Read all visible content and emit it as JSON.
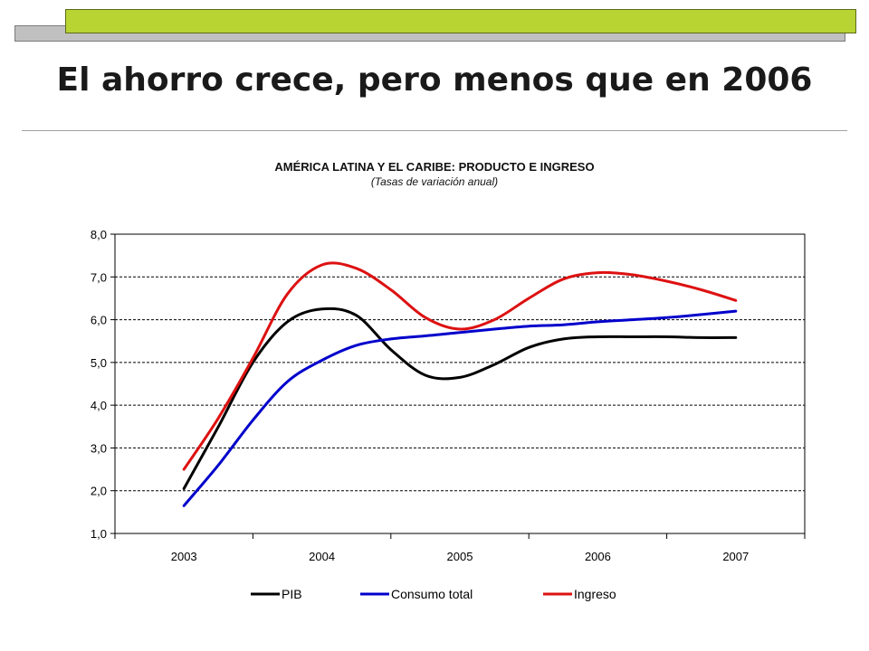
{
  "slide": {
    "title": "El ahorro crece, pero menos que en 2006"
  },
  "colors": {
    "accent_green": "#b7d433",
    "accent_gray": "#c0c0c0"
  },
  "chart_data": {
    "type": "line",
    "title": "AMÉRICA LATINA Y EL CARIBE: PRODUCTO E INGRESO",
    "subtitle": "(Tasas de variación anual)",
    "xlabel": "",
    "ylabel": "",
    "x": [
      2003,
      2003.25,
      2003.5,
      2003.75,
      2004,
      2004.25,
      2004.5,
      2004.75,
      2005,
      2005.25,
      2005.5,
      2005.75,
      2006,
      2006.25,
      2006.5,
      2006.75,
      2007
    ],
    "x_ticks": [
      "2003",
      "2004",
      "2005",
      "2006",
      "2007"
    ],
    "ylim": [
      1.0,
      8.0
    ],
    "y_ticks": [
      "1,0",
      "2,0",
      "3,0",
      "4,0",
      "5,0",
      "6,0",
      "7,0",
      "8,0"
    ],
    "grid": "horizontal dashed",
    "legend_position": "bottom",
    "series": [
      {
        "name": "PIB",
        "color": "#000000",
        "values": [
          2.05,
          3.5,
          5.0,
          5.95,
          6.25,
          6.1,
          5.3,
          4.7,
          4.65,
          4.95,
          5.35,
          5.55,
          5.6,
          5.6,
          5.6,
          5.58,
          5.58
        ]
      },
      {
        "name": "Consumo total",
        "color": "#0000cc",
        "values": [
          1.65,
          2.6,
          3.65,
          4.55,
          5.05,
          5.4,
          5.55,
          5.62,
          5.7,
          5.78,
          5.85,
          5.88,
          5.95,
          6.0,
          6.05,
          6.12,
          6.2
        ]
      },
      {
        "name": "Ingreso",
        "color": "#dd1111",
        "values": [
          2.5,
          3.7,
          5.1,
          6.6,
          7.28,
          7.2,
          6.7,
          6.05,
          5.78,
          6.0,
          6.5,
          6.95,
          7.1,
          7.05,
          6.9,
          6.7,
          6.45
        ]
      }
    ]
  }
}
